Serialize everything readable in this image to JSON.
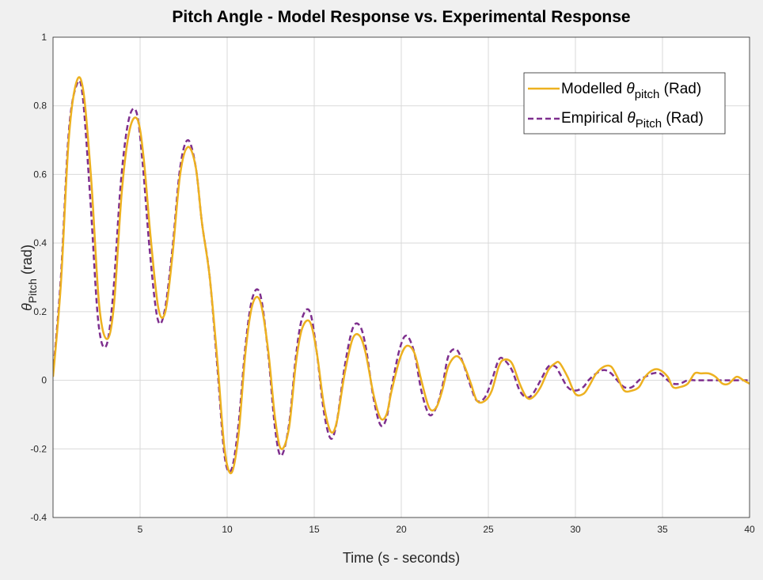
{
  "chart_data": {
    "type": "line",
    "title": "Pitch Angle - Model Response vs. Experimental Response",
    "xlabel": "Time (s - seconds)",
    "ylabel": {
      "symbol": "θ",
      "sub": "Pitch",
      "tail": " (rad)"
    },
    "xlim": [
      0,
      40
    ],
    "ylim": [
      -0.4,
      1
    ],
    "xticks": [
      5,
      10,
      15,
      20,
      25,
      30,
      35,
      40
    ],
    "yticks": [
      -0.4,
      -0.2,
      0,
      0.2,
      0.4,
      0.6,
      0.8,
      1
    ],
    "xtick_labels": [
      "5",
      "10",
      "15",
      "20",
      "25",
      "30",
      "35",
      "40"
    ],
    "ytick_labels": [
      "-0.4",
      "-0.2",
      "0",
      "0.2",
      "0.4",
      "0.6",
      "0.8",
      "1"
    ],
    "grid": true,
    "legend_position": "top-right",
    "series": [
      {
        "name": "Modelled θpitch (Rad)",
        "legend": {
          "pre": "Modelled ",
          "symbol": "θ",
          "sub": "pitch",
          "post": " (Rad)"
        },
        "color": "#EDB120",
        "style": "solid",
        "x": [
          0,
          0.45,
          0.9,
          1.35,
          1.75,
          2.2,
          2.65,
          3.1,
          3.5,
          3.95,
          4.4,
          4.85,
          5.2,
          5.6,
          6.05,
          6.45,
          6.85,
          7.3,
          7.75,
          8.2,
          8.55,
          9.0,
          9.45,
          9.85,
          10.25,
          10.65,
          11.05,
          11.45,
          11.9,
          12.35,
          12.75,
          13.1,
          13.55,
          13.95,
          14.3,
          14.75,
          15.15,
          15.55,
          15.95,
          16.3,
          16.75,
          17.2,
          17.6,
          17.95,
          18.4,
          18.8,
          19.15,
          19.45,
          19.9,
          20.3,
          20.75,
          21.15,
          21.6,
          22.0,
          22.35,
          22.7,
          23.15,
          23.55,
          24.0,
          24.35,
          24.8,
          25.2,
          25.6,
          25.9,
          26.35,
          26.8,
          27.2,
          27.55,
          28.0,
          28.45,
          28.85,
          29.1,
          29.55,
          30.0,
          30.45,
          30.75,
          31.2,
          31.65,
          32.05,
          32.4,
          32.8,
          33.25,
          33.65,
          34.0,
          34.45,
          34.85,
          35.3,
          35.6,
          36.0,
          36.45,
          36.85,
          37.2,
          37.65,
          38.05,
          38.45,
          38.8,
          39.25,
          39.65,
          40.0
        ],
        "y": [
          0.01,
          0.28,
          0.7,
          0.87,
          0.84,
          0.58,
          0.22,
          0.12,
          0.22,
          0.55,
          0.73,
          0.76,
          0.65,
          0.42,
          0.21,
          0.2,
          0.36,
          0.6,
          0.68,
          0.62,
          0.46,
          0.3,
          0.05,
          -0.2,
          -0.27,
          -0.16,
          0.08,
          0.22,
          0.23,
          0.09,
          -0.11,
          -0.2,
          -0.14,
          0.05,
          0.15,
          0.17,
          0.08,
          -0.07,
          -0.15,
          -0.12,
          0.02,
          0.12,
          0.13,
          0.08,
          -0.04,
          -0.11,
          -0.1,
          -0.03,
          0.06,
          0.1,
          0.08,
          0.0,
          -0.08,
          -0.08,
          -0.03,
          0.04,
          0.07,
          0.05,
          -0.01,
          -0.06,
          -0.06,
          -0.03,
          0.04,
          0.06,
          0.05,
          -0.01,
          -0.05,
          -0.05,
          -0.02,
          0.03,
          0.05,
          0.05,
          0.01,
          -0.04,
          -0.04,
          -0.02,
          0.02,
          0.04,
          0.04,
          0.01,
          -0.03,
          -0.03,
          -0.02,
          0.01,
          0.03,
          0.03,
          0.01,
          -0.02,
          -0.02,
          -0.01,
          0.02,
          0.02,
          0.02,
          0.01,
          -0.01,
          -0.01,
          0.01,
          0.0,
          -0.01
        ]
      },
      {
        "name": "Empirical θPitch (Rad)",
        "legend": {
          "pre": "Empirical ",
          "symbol": "θ",
          "sub": "Pitch",
          "post": " (Rad)"
        },
        "color": "#7E2F8E",
        "style": "dashed",
        "x": [
          0,
          0.45,
          0.9,
          1.35,
          1.7,
          2.15,
          2.6,
          3.05,
          3.45,
          3.9,
          4.35,
          4.8,
          5.15,
          5.55,
          6.0,
          6.4,
          6.85,
          7.3,
          7.75,
          8.2,
          8.55,
          9.0,
          9.45,
          9.85,
          10.25,
          10.65,
          11.05,
          11.45,
          11.9,
          12.35,
          12.75,
          13.1,
          13.55,
          13.95,
          14.3,
          14.75,
          15.15,
          15.55,
          15.95,
          16.3,
          16.75,
          17.2,
          17.6,
          17.95,
          18.4,
          18.8,
          19.15,
          19.45,
          19.9,
          20.3,
          20.75,
          21.15,
          21.6,
          22.0,
          22.35,
          22.7,
          23.15,
          23.55,
          24.0,
          24.35,
          24.8,
          25.2,
          25.6,
          25.9,
          26.35,
          26.8,
          27.2,
          27.55,
          28.0,
          28.45,
          28.85,
          29.1,
          29.55,
          30.0,
          30.45,
          30.75,
          31.2,
          31.65,
          32.05,
          32.4,
          32.8,
          33.25,
          33.65,
          34.0,
          34.45,
          34.85,
          35.3,
          35.6,
          36.0,
          36.45,
          36.85,
          37.2,
          37.65,
          38.05,
          38.45,
          38.8,
          39.25,
          39.65,
          40.0
        ],
        "y": [
          0.02,
          0.3,
          0.72,
          0.86,
          0.83,
          0.52,
          0.17,
          0.1,
          0.25,
          0.58,
          0.76,
          0.78,
          0.63,
          0.38,
          0.18,
          0.2,
          0.38,
          0.62,
          0.7,
          0.62,
          0.46,
          0.3,
          0.03,
          -0.22,
          -0.26,
          -0.13,
          0.1,
          0.24,
          0.25,
          0.08,
          -0.14,
          -0.22,
          -0.13,
          0.07,
          0.18,
          0.2,
          0.08,
          -0.09,
          -0.17,
          -0.12,
          0.04,
          0.15,
          0.16,
          0.1,
          -0.05,
          -0.13,
          -0.11,
          -0.02,
          0.09,
          0.13,
          0.08,
          -0.03,
          -0.1,
          -0.08,
          -0.02,
          0.07,
          0.09,
          0.05,
          -0.02,
          -0.06,
          -0.05,
          0.0,
          0.06,
          0.06,
          0.03,
          -0.03,
          -0.05,
          -0.04,
          0.0,
          0.04,
          0.04,
          0.02,
          -0.02,
          -0.03,
          -0.02,
          0.0,
          0.02,
          0.03,
          0.02,
          0.0,
          -0.02,
          -0.02,
          0.0,
          0.01,
          0.02,
          0.02,
          0.0,
          -0.01,
          -0.01,
          0.0,
          0.0,
          0.0,
          0.0,
          0.0,
          0.0,
          0.0,
          0.0,
          0.0,
          0.0
        ]
      }
    ]
  }
}
